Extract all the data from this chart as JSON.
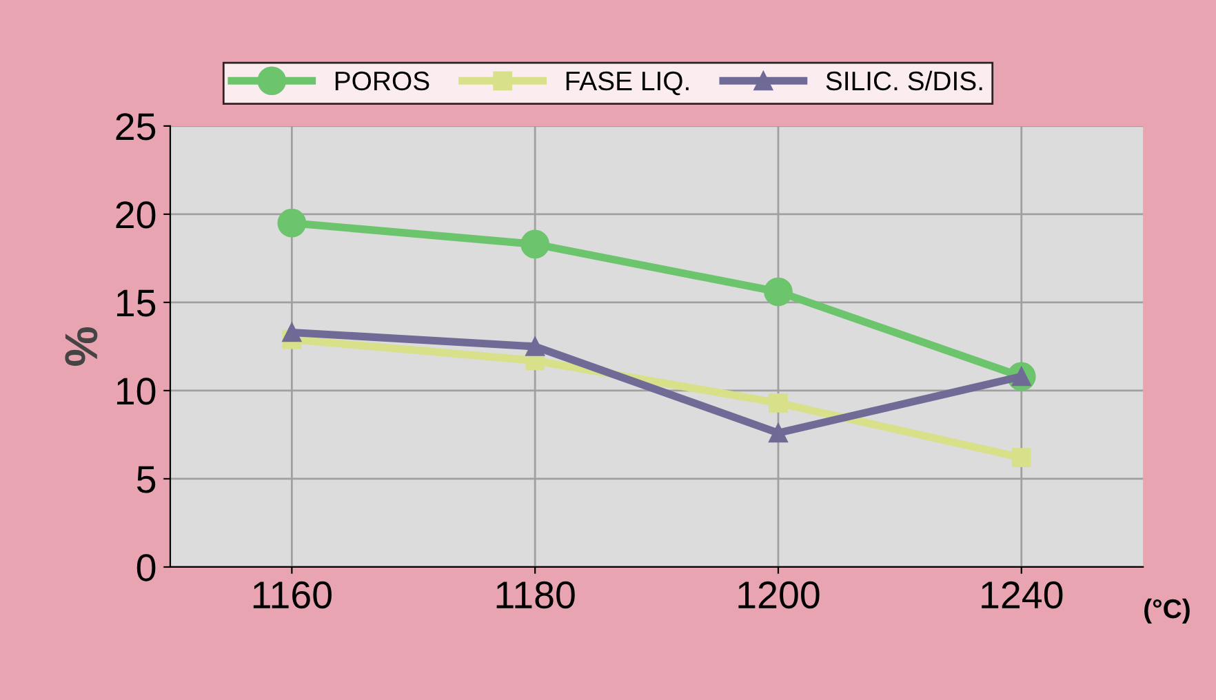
{
  "chart_data": {
    "type": "line",
    "categories": [
      "1160",
      "1180",
      "1200",
      "1240"
    ],
    "xlabel": "(°C)",
    "ylabel": "%",
    "ylim": [
      0,
      25
    ],
    "yticks": [
      0,
      5,
      10,
      15,
      20,
      25
    ],
    "grid": true,
    "legend": "top",
    "series": [
      {
        "name": "POROS",
        "color": "#6cc46c",
        "marker": "circle",
        "values": [
          19.5,
          18.3,
          15.6,
          10.8
        ]
      },
      {
        "name": "FASE LIQ.",
        "color": "#d8e08a",
        "marker": "square",
        "values": [
          12.9,
          11.7,
          9.3,
          6.2
        ]
      },
      {
        "name": "SILIC. S/DIS.",
        "color": "#6f6a96",
        "marker": "triangle",
        "values": [
          13.3,
          12.5,
          7.6,
          10.8
        ]
      }
    ]
  }
}
